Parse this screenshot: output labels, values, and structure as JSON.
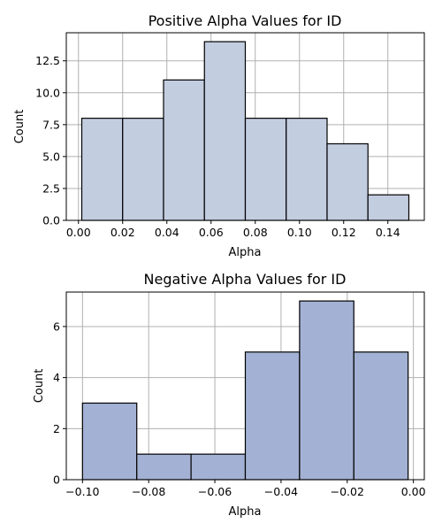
{
  "chart_data": [
    {
      "type": "bar",
      "title": "Positive Alpha Values for ID",
      "xlabel": "Alpha",
      "ylabel": "Count",
      "bins": [
        {
          "x0": 0.0015,
          "x1": 0.02,
          "value": 8
        },
        {
          "x0": 0.02,
          "x1": 0.0385,
          "value": 8
        },
        {
          "x0": 0.0385,
          "x1": 0.057,
          "value": 11
        },
        {
          "x0": 0.057,
          "x1": 0.0755,
          "value": 14
        },
        {
          "x0": 0.0755,
          "x1": 0.094,
          "value": 8
        },
        {
          "x0": 0.094,
          "x1": 0.1125,
          "value": 8
        },
        {
          "x0": 0.1125,
          "x1": 0.131,
          "value": 6
        },
        {
          "x0": 0.131,
          "x1": 0.1495,
          "value": 2
        }
      ],
      "xlim": [
        -0.0055,
        0.1565
      ],
      "ylim": [
        0,
        14.7
      ],
      "xticks": [
        0.0,
        0.02,
        0.04,
        0.06,
        0.08,
        0.1,
        0.12,
        0.14
      ],
      "xtick_labels": [
        "0.00",
        "0.02",
        "0.04",
        "0.06",
        "0.08",
        "0.10",
        "0.12",
        "0.14"
      ],
      "yticks": [
        0.0,
        2.5,
        5.0,
        7.5,
        10.0,
        12.5
      ],
      "ytick_labels": [
        "0.0",
        "2.5",
        "5.0",
        "7.5",
        "10.0",
        "12.5"
      ],
      "grid": true,
      "bar_color": "#c3cde0",
      "edge_color": "#000000"
    },
    {
      "type": "bar",
      "title": "Negative Alpha Values for ID",
      "xlabel": "Alpha",
      "ylabel": "Count",
      "bins": [
        {
          "x0": -0.1,
          "x1": -0.0836,
          "value": 3
        },
        {
          "x0": -0.0836,
          "x1": -0.0672,
          "value": 1
        },
        {
          "x0": -0.0672,
          "x1": -0.0508,
          "value": 1
        },
        {
          "x0": -0.0508,
          "x1": -0.0344,
          "value": 5
        },
        {
          "x0": -0.0344,
          "x1": -0.018,
          "value": 7
        },
        {
          "x0": -0.018,
          "x1": -0.0016,
          "value": 5
        }
      ],
      "xlim": [
        -0.1049,
        0.0033
      ],
      "ylim": [
        0,
        7.35
      ],
      "xticks": [
        -0.1,
        -0.08,
        -0.06,
        -0.04,
        -0.02,
        0.0
      ],
      "xtick_labels": [
        "−0.10",
        "−0.08",
        "−0.06",
        "−0.04",
        "−0.02",
        "0.00"
      ],
      "yticks": [
        0,
        2,
        4,
        6
      ],
      "ytick_labels": [
        "0",
        "2",
        "4",
        "6"
      ],
      "grid": true,
      "bar_color": "#a3b1d4",
      "edge_color": "#000000"
    }
  ]
}
